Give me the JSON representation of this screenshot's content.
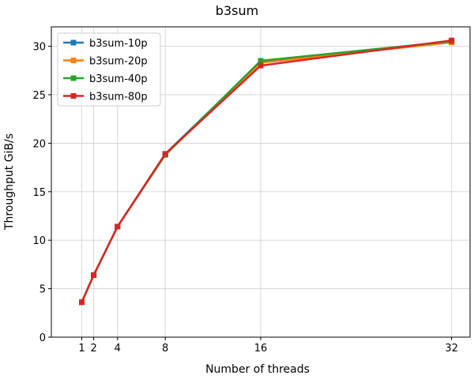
{
  "chart_data": {
    "type": "line",
    "title": "b3sum",
    "xlabel": "Number of threads",
    "ylabel": "Throughput GiB/s",
    "x": [
      1,
      2,
      4,
      8,
      16,
      32
    ],
    "xticks": [
      1,
      2,
      4,
      8,
      16,
      32
    ],
    "yticks": [
      0,
      5,
      10,
      15,
      20,
      25,
      30
    ],
    "xlim": [
      -1.55,
      33.55
    ],
    "ylim": [
      0,
      32
    ],
    "grid": true,
    "legend_position": "top-left",
    "series": [
      {
        "name": "b3sum-10p",
        "color": "#1f77b4",
        "marker": "square",
        "values": [
          3.6,
          6.4,
          11.4,
          18.9,
          28.4,
          30.5
        ]
      },
      {
        "name": "b3sum-20p",
        "color": "#ff7f0e",
        "marker": "square",
        "values": [
          3.6,
          6.4,
          11.4,
          18.8,
          28.3,
          30.4
        ]
      },
      {
        "name": "b3sum-40p",
        "color": "#2ca02c",
        "marker": "square",
        "values": [
          3.6,
          6.4,
          11.4,
          18.8,
          28.5,
          30.5
        ]
      },
      {
        "name": "b3sum-80p",
        "color": "#d62728",
        "marker": "square",
        "values": [
          3.6,
          6.4,
          11.4,
          18.9,
          28.0,
          30.6
        ]
      }
    ]
  }
}
